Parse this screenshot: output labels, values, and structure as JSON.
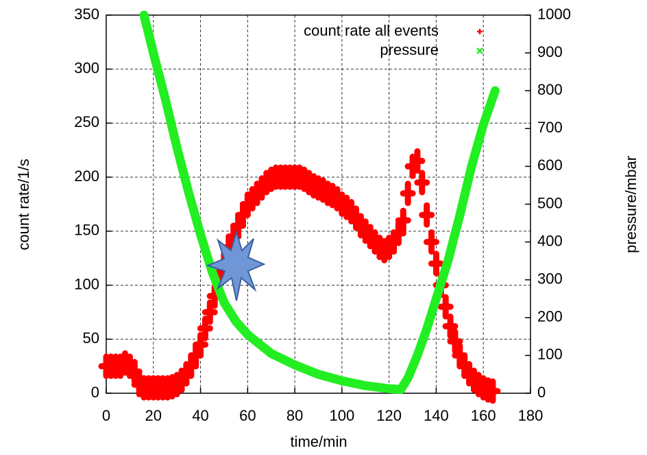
{
  "chart_data": {
    "type": "scatter",
    "x_label": "time/min",
    "y_label": "count rate/1/s",
    "y2_label": "pressure/mbar",
    "xlim": [
      0,
      180
    ],
    "xticks": [
      0,
      20,
      40,
      60,
      80,
      100,
      120,
      140,
      160,
      180
    ],
    "ylim": [
      0,
      350
    ],
    "yticks": [
      0,
      50,
      100,
      150,
      200,
      250,
      300,
      350
    ],
    "y2lim": [
      0,
      1000
    ],
    "y2ticks": [
      0,
      100,
      200,
      300,
      400,
      500,
      600,
      700,
      800,
      900,
      1000
    ],
    "grid": true,
    "legend": "top-right",
    "series": [
      {
        "name": "count rate all events",
        "color": "#ff0000",
        "marker": "plus",
        "axis": "y",
        "x": [
          0,
          2,
          4,
          6,
          8,
          10,
          12,
          14,
          16,
          18,
          20,
          22,
          24,
          26,
          28,
          30,
          32,
          34,
          36,
          38,
          40,
          42,
          44,
          46,
          48,
          50,
          52,
          54,
          56,
          58,
          60,
          62,
          64,
          66,
          68,
          70,
          72,
          74,
          76,
          78,
          80,
          82,
          84,
          86,
          88,
          90,
          92,
          94,
          96,
          98,
          100,
          102,
          104,
          106,
          108,
          110,
          112,
          114,
          116,
          118,
          120,
          122,
          124,
          126,
          128,
          130,
          132,
          134,
          136,
          138,
          140,
          142,
          144,
          146,
          148,
          150,
          152,
          154,
          156,
          158,
          160,
          162,
          164
        ],
        "values": [
          25,
          25,
          25,
          25,
          28,
          25,
          20,
          8,
          5,
          5,
          5,
          5,
          5,
          5,
          6,
          8,
          12,
          18,
          25,
          35,
          45,
          60,
          75,
          90,
          105,
          120,
          135,
          145,
          155,
          165,
          175,
          180,
          185,
          190,
          195,
          198,
          200,
          200,
          200,
          200,
          200,
          200,
          198,
          195,
          192,
          190,
          188,
          185,
          183,
          180,
          175,
          172,
          168,
          162,
          155,
          150,
          145,
          140,
          135,
          132,
          135,
          140,
          148,
          160,
          185,
          210,
          215,
          195,
          165,
          140,
          120,
          100,
          80,
          62,
          48,
          35,
          25,
          18,
          12,
          8,
          5,
          3,
          2
        ]
      },
      {
        "name": "pressure",
        "color": "#22ee22",
        "marker": "cross",
        "axis": "y2",
        "x": [
          16,
          20,
          25,
          30,
          35,
          40,
          45,
          50,
          55,
          60,
          70,
          80,
          90,
          100,
          110,
          120,
          125,
          128,
          132,
          136,
          140,
          145,
          150,
          155,
          160,
          165
        ],
        "values": [
          1000,
          900,
          780,
          650,
          530,
          420,
          320,
          240,
          190,
          155,
          105,
          75,
          50,
          33,
          20,
          12,
          10,
          40,
          100,
          170,
          250,
          350,
          470,
          600,
          710,
          800
        ]
      }
    ]
  }
}
